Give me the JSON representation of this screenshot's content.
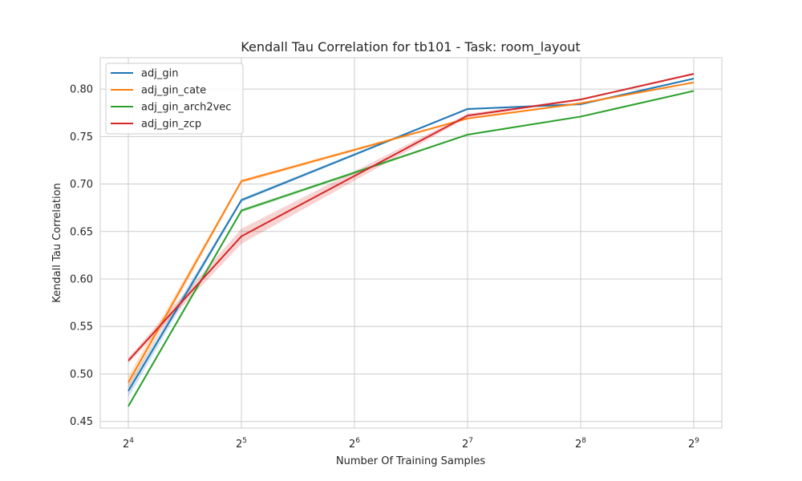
{
  "chart_data": {
    "type": "line",
    "title": "Kendall Tau Correlation for tb101 - Task: room_layout",
    "xlabel": "Number Of Training Samples",
    "ylabel": "Kendall Tau Correlation",
    "x_scale": "log2",
    "x": [
      16,
      32,
      64,
      128,
      256,
      512
    ],
    "x_tick_labels": [
      {
        "base": "2",
        "exp": "4"
      },
      {
        "base": "2",
        "exp": "5"
      },
      {
        "base": "2",
        "exp": "6"
      },
      {
        "base": "2",
        "exp": "7"
      },
      {
        "base": "2",
        "exp": "8"
      },
      {
        "base": "2",
        "exp": "9"
      }
    ],
    "y_ticks": [
      "0.45",
      "0.50",
      "0.55",
      "0.60",
      "0.65",
      "0.70",
      "0.75",
      "0.80"
    ],
    "ylim": [
      0.443,
      0.833
    ],
    "grid": true,
    "legend_position": "top-left",
    "series": [
      {
        "name": "adj_gin",
        "color": "#1f77b4",
        "x": [
          16,
          32,
          128,
          256,
          512
        ],
        "values": [
          0.482,
          0.683,
          0.779,
          0.784,
          0.811
        ],
        "band": [
          0.007,
          0.002,
          0.001,
          0.001,
          0.001
        ]
      },
      {
        "name": "adj_gin_cate",
        "color": "#ff7f0e",
        "x": [
          16,
          32,
          128,
          256,
          512
        ],
        "values": [
          0.491,
          0.703,
          0.769,
          0.785,
          0.807
        ],
        "band": [
          0.007,
          0.002,
          0.001,
          0.001,
          0.001
        ]
      },
      {
        "name": "adj_gin_arch2vec",
        "color": "#2ca02c",
        "x": [
          16,
          32,
          128,
          256,
          512
        ],
        "values": [
          0.466,
          0.672,
          0.752,
          0.771,
          0.798
        ],
        "band": [
          0.002,
          0.002,
          0.001,
          0.001,
          0.001
        ]
      },
      {
        "name": "adj_gin_zcp",
        "color": "#d62728",
        "x": [
          16,
          32,
          128,
          256,
          512
        ],
        "values": [
          0.514,
          0.645,
          0.772,
          0.789,
          0.816
        ],
        "band": [
          0.003,
          0.008,
          0.002,
          0.001,
          0.001
        ]
      }
    ]
  }
}
